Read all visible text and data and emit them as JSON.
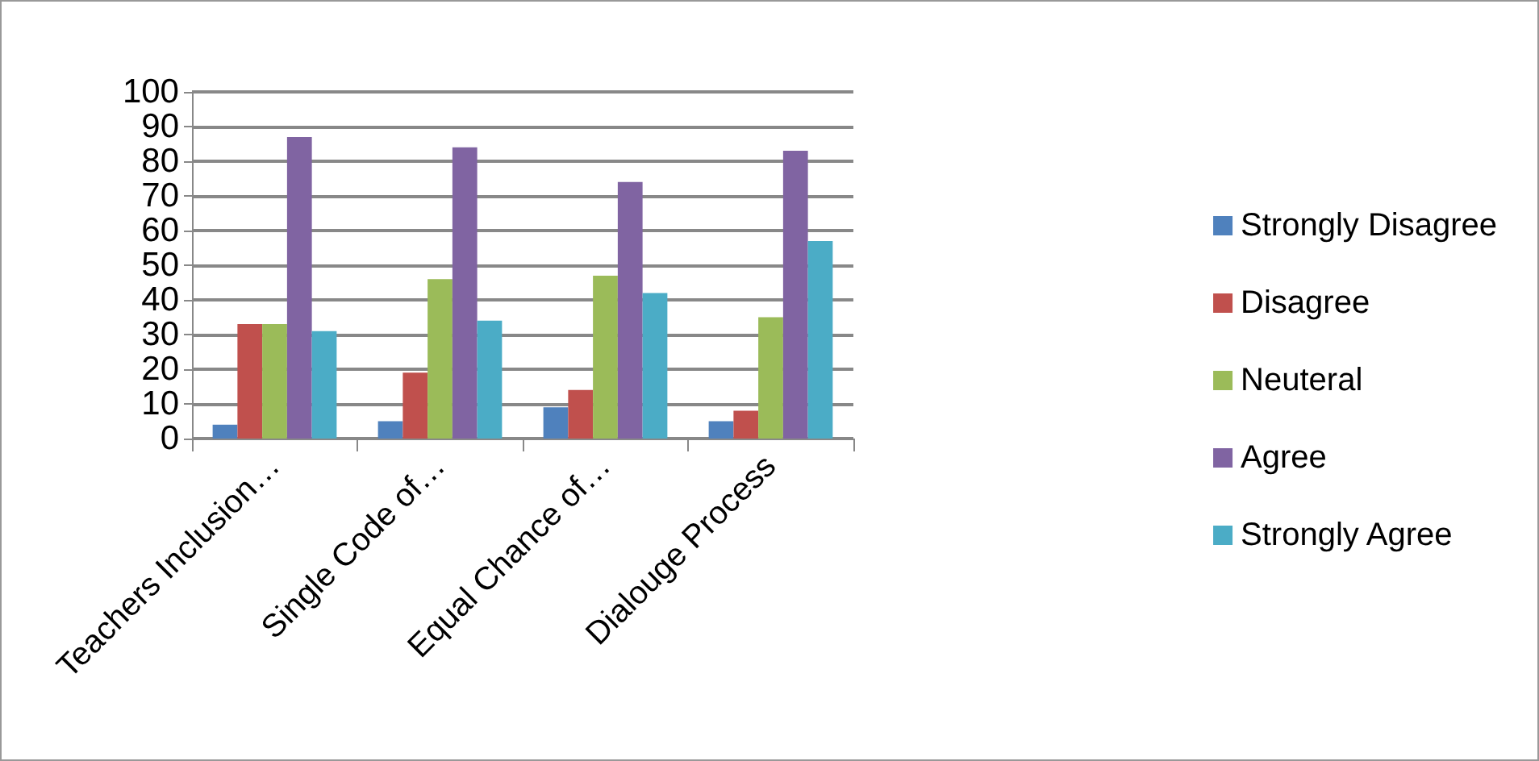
{
  "chart_data": {
    "type": "bar",
    "categories": [
      "Teachers Inclusion…",
      "Single Code of…",
      "Equal Chance of…",
      "Dialouge Process"
    ],
    "series": [
      {
        "name": "Strongly Disagree",
        "color": "#4f81bd",
        "values": [
          4,
          5,
          9,
          5
        ]
      },
      {
        "name": "Disagree",
        "color": "#c0504d",
        "values": [
          33,
          19,
          14,
          8
        ]
      },
      {
        "name": "Neuteral",
        "color": "#9bbb59",
        "values": [
          33,
          46,
          47,
          35
        ]
      },
      {
        "name": "Agree",
        "color": "#8064a2",
        "values": [
          87,
          84,
          74,
          83
        ]
      },
      {
        "name": "Strongly Agree",
        "color": "#4bacc6",
        "values": [
          31,
          34,
          42,
          57
        ]
      }
    ],
    "ylim": [
      0,
      100
    ],
    "yticks": [
      0,
      10,
      20,
      30,
      40,
      50,
      60,
      70,
      80,
      90,
      100
    ],
    "grid": "y",
    "legend": "right"
  }
}
